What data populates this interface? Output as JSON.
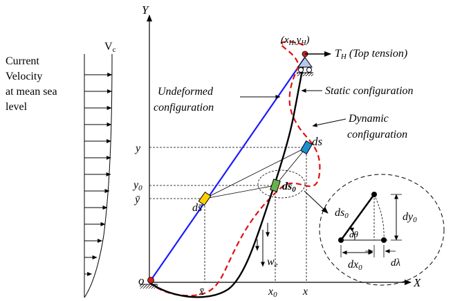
{
  "current": {
    "title_lines": [
      "Current",
      "Velocity",
      "at mean sea",
      "level"
    ],
    "vc_label": "V",
    "vc_sub": "c"
  },
  "axes": {
    "y_label": "Y",
    "x_label": "X",
    "origin_label": "o"
  },
  "top": {
    "coord_label": "(x",
    "coord_sub_h1": "H",
    "coord_mid": ",y",
    "coord_sub_h2": "H",
    "coord_end": ")",
    "tension_label": "T",
    "tension_sub": "H",
    "tension_note": " (Top tension)"
  },
  "labels": {
    "undeformed_1": "Undeformed",
    "undeformed_2": "configuration",
    "static": "Static configuration",
    "dynamic_1": "Dynamic",
    "dynamic_2": "configuration",
    "ds": "ds",
    "ds0": "ds",
    "ds0_sub": "0",
    "dsbar": "ds̄",
    "we": "w",
    "we_sub": "e"
  },
  "ticks": {
    "y": "y",
    "y0": "y",
    "y0_sub": "0",
    "ybar": "ȳ",
    "xbar": "x̄",
    "x0": "x",
    "x0_sub": "0",
    "x": "x"
  },
  "detail": {
    "ds0": "ds",
    "ds0_sub": "0",
    "dy0": "dy",
    "dy0_sub": "0",
    "dx0": "dx",
    "dx0_sub": "0",
    "dtheta": "dθ",
    "dlambda": "dλ"
  },
  "colors": {
    "undeformed": "#1a1aff",
    "static": "#000000",
    "dynamic": "#e01010",
    "ds_element": "#1e90d0",
    "ds0_element": "#6ab04c",
    "dsbar_element": "#ffd000",
    "node": "#d02020"
  }
}
